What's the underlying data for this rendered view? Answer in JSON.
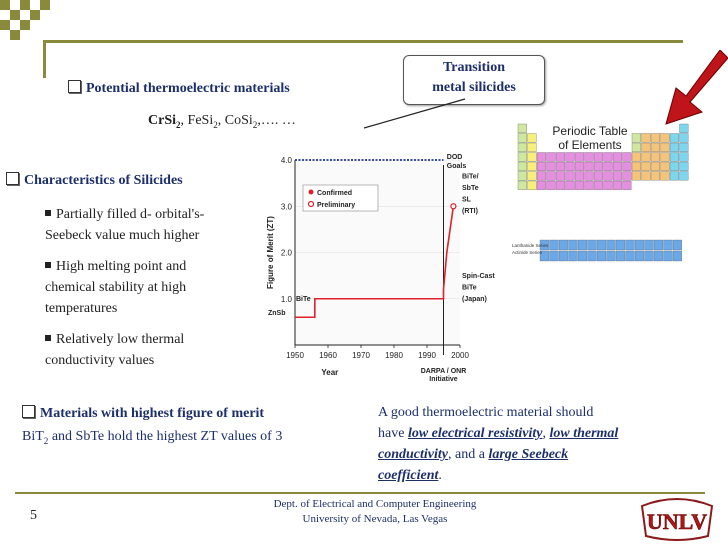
{
  "slide": {
    "potential_heading": "Potential thermoelectric materials",
    "materials": {
      "m1": "CrSi",
      "m1_sub": "2",
      "m2": ", FeSi",
      "m2_sub": "2",
      "m3": ", CoSi",
      "m3_sub": "2",
      "m4": ",…. …"
    },
    "callout": {
      "line1": "Transition",
      "line2": "metal silicides"
    },
    "characteristics": {
      "heading": "Characteristics of Silicides",
      "bullets": [
        {
          "line1": "Partially filled d- orbital's-",
          "line2": "Seebeck value much higher"
        },
        {
          "line1": "High melting point and",
          "line2": "chemical stability at high",
          "line3": "temperatures"
        },
        {
          "line1": "Relatively low thermal",
          "line2": "conductivity values"
        }
      ]
    },
    "merit": {
      "heading": "Materials with highest figure of merit",
      "text_before": "BiT",
      "sub": "2",
      "text_after": " and SbTe hold the highest ZT values of 3"
    },
    "good_material": {
      "t1": "A good thermoelectric material should",
      "t2": "have ",
      "e1": "low electrical resistivity",
      "t3": ", ",
      "e2": "low thermal",
      "e3": "conductivity",
      "t4": ", and a ",
      "e4": "large Seebeck",
      "e5": "coefficient",
      "t5": "."
    },
    "footer": {
      "page_number": "5",
      "dept": "Dept. of Electrical and Computer Engineering",
      "univ": "University of Nevada, Las Vegas",
      "logo_text": "UNLV"
    },
    "colors": {
      "navy": "#1c2f6b",
      "red": "#c0141b",
      "olive": "#8a8a3c",
      "dark_red": "#8b1a1a"
    },
    "icons": [
      "checkbox-bullet-icon",
      "square-bullet-icon",
      "red-arrow-icon",
      "unlv-logo-icon"
    ]
  },
  "periodic_table": {
    "title_line1": "Periodic Table",
    "title_line2": "of Elements",
    "series_label1": "Lanthanide Series",
    "series_label2": "Actinide Series"
  },
  "chart_data": {
    "type": "line",
    "title": "",
    "xlabel": "Year",
    "ylabel": "Figure of Merit (ZT)",
    "xlim": [
      1950,
      2000
    ],
    "ylim": [
      0.0,
      4.0
    ],
    "x_ticks": [
      "1950",
      "1960",
      "1970",
      "1980",
      "1990",
      "2000"
    ],
    "y_ticks": [
      "1.0",
      "2.0",
      "3.0",
      "4.0"
    ],
    "legend": [
      "Confirmed",
      "Preliminary"
    ],
    "legend_position": "top-left",
    "goal_label_line1": "DOD",
    "goal_label_line2": "Goals",
    "goal_value": 4.0,
    "initiative_label_line1": "DARPA / ONR",
    "initiative_label_line2": "Initiative",
    "initiative_year": 1995,
    "series": [
      {
        "name": "Confirmed",
        "points": [
          [
            1950,
            0.6
          ],
          [
            1956,
            0.6
          ],
          [
            1956,
            1.0
          ],
          [
            1995,
            1.0
          ],
          [
            1995,
            1.2
          ]
        ]
      },
      {
        "name": "Preliminary",
        "points": [
          [
            1995,
            1.2
          ],
          [
            1996,
            2.0
          ],
          [
            1998,
            3.0
          ]
        ]
      }
    ],
    "annotations": [
      {
        "text": "ZnSb",
        "x": 1950,
        "y": 0.65
      },
      {
        "text": "BiTe",
        "x": 1952,
        "y": 0.95
      },
      {
        "text": "BiTe/",
        "x": 1999,
        "y": 3.6
      },
      {
        "text": "SbTe",
        "x": 1999,
        "y": 3.35
      },
      {
        "text": "SL",
        "x": 1999,
        "y": 3.1
      },
      {
        "text": "(RTI)",
        "x": 1999,
        "y": 2.85
      },
      {
        "text": "Spin-Cast",
        "x": 1999,
        "y": 1.45
      },
      {
        "text": "BiTe",
        "x": 1999,
        "y": 1.2
      },
      {
        "text": "(Japan)",
        "x": 1999,
        "y": 0.95
      }
    ]
  }
}
